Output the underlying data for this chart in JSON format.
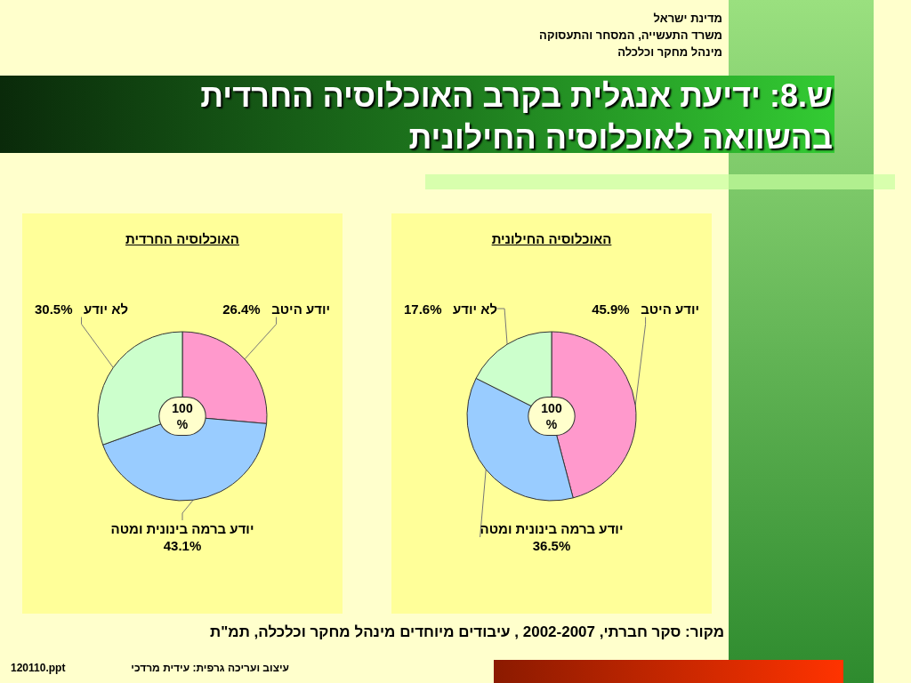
{
  "chart_data": [
    {
      "type": "other",
      "title": "ש.8: ידיעת אנגלית בקרב האוכלוסיה החרדית בהשוואה לאוכלוסיה החילונית",
      "annotations": [
        "מדינת ישראל",
        "משרד התעשייה, המסחר והתעסוקה",
        "מינהל מחקר וכלכלה"
      ]
    },
    {
      "type": "pie",
      "title": "האוכלוסיה החרדית",
      "categories": [
        "יודע היטב",
        "יודע ברמה בינונית ומטה",
        "לא יודע"
      ],
      "values": [
        26.4,
        43.1,
        30.5
      ],
      "value_labels": [
        "26.4%",
        "43.1%",
        "30.5%"
      ],
      "colors": [
        "#ff99cc",
        "#99ccff",
        "#ccffcc"
      ],
      "annotations": [
        "100 %"
      ]
    },
    {
      "type": "pie",
      "title": "האוכלוסיה החילונית",
      "categories": [
        "יודע היטב",
        "יודע ברמה בינונית ומטה",
        "לא יודע"
      ],
      "values": [
        45.9,
        36.5,
        17.6
      ],
      "value_labels": [
        "45.9%",
        "36.5%",
        "17.6%"
      ],
      "colors": [
        "#ff99cc",
        "#99ccff",
        "#ccffcc"
      ],
      "annotations": [
        "100 %"
      ]
    },
    {
      "type": "other",
      "annotations": [
        "מקור: סקר חברתי, 2002-2007 , עיבודים מיוחדים מינהל מחקר וכלכלה, תמ\"ת",
        "עיצוב ועריכה גרפית: עידית מרדכי",
        "120110.ppt"
      ]
    }
  ]
}
